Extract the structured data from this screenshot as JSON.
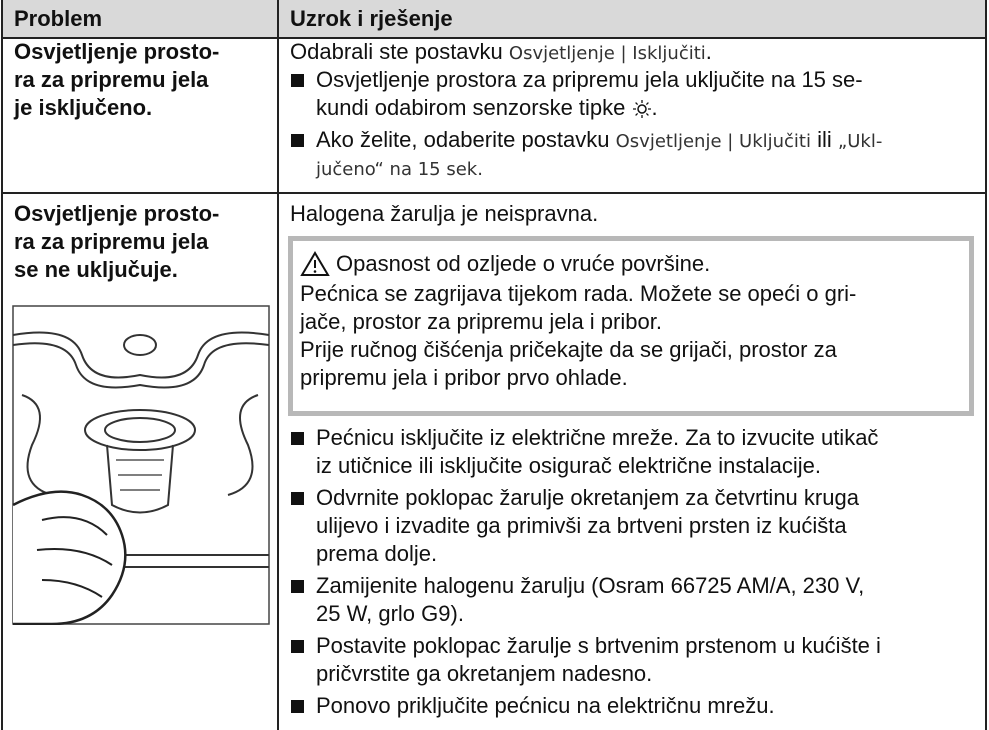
{
  "header": {
    "problem": "Problem",
    "cause": "Uzrok i rješenje"
  },
  "rows": [
    {
      "problem": [
        "Osvjetljenje prosto-",
        "ra za pripremu jela",
        "je isključeno."
      ],
      "intro": [
        "Odabrali ste postavku ",
        "Osvjetljenje | Isključiti",
        "."
      ],
      "steps": [
        [
          [
            "Osvjetljenje prostora za pripremu jela uključite na 15 se-"
          ],
          [
            "kundi odabirom senzorske tipke ",
            "."
          ]
        ],
        [
          [
            "Ako želite, odaberite postavku ",
            "Osvjetljenje | Uključiti",
            " ili ",
            "„Ukl-"
          ],
          [
            "jučeno“ na 15 sek."
          ]
        ]
      ]
    },
    {
      "problem": [
        "Osvjetljenje prosto-",
        "ra za pripremu jela",
        "se ne uključuje."
      ],
      "intro": [
        "Halogena žarulja je neispravna."
      ],
      "warning": {
        "title": "Opasnost od ozljede o vruće površine.",
        "lines": [
          "Pećnica se zagrijava tijekom rada. Možete se opeći o gri-",
          "jače, prostor za pripremu jela i pribor.",
          "Prije ručnog čišćenja pričekajte da se grijači, prostor za",
          "pripremu jela i pribor prvo ohlade."
        ]
      },
      "steps": [
        [
          [
            "Pećnicu isključite iz električne mreže. Za to izvucite utikač"
          ],
          [
            "iz utičnice ili isključite osigurač električne instalacije."
          ]
        ],
        [
          [
            "Odvrnite poklopac žarulje okretanjem za četvrtinu kruga"
          ],
          [
            "ulijevo i izvadite ga primivši za brtveni prsten iz kućišta"
          ],
          [
            "prema dolje."
          ]
        ],
        [
          [
            "Zamijenite halogenu žarulju (Osram 66725 AM/A, 230 V,"
          ],
          [
            "25 W, grlo G9)."
          ]
        ],
        [
          [
            "Postavite poklopac žarulje s brtvenim prstenom u kućište i"
          ],
          [
            "pričvrstite ga okretanjem nadesno."
          ]
        ],
        [
          [
            "Ponovo priključite pećnicu na električnu mrežu."
          ]
        ]
      ]
    }
  ]
}
